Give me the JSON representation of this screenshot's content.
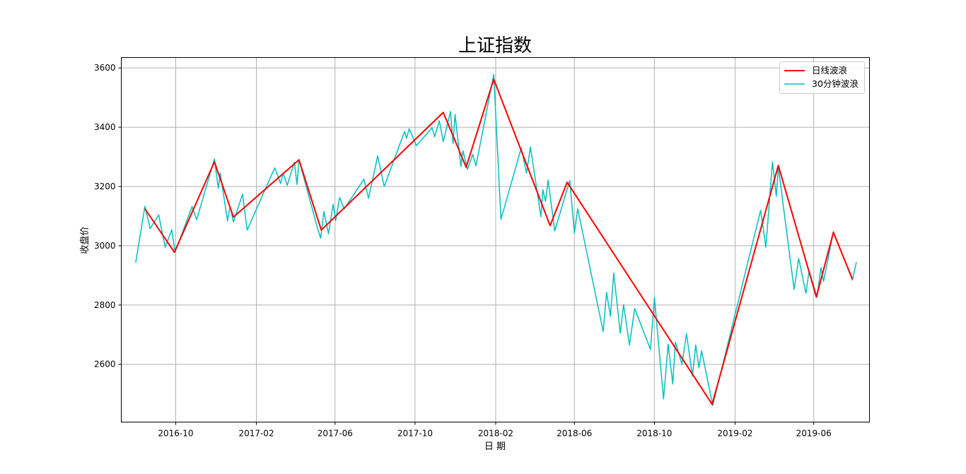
{
  "chart_data": {
    "type": "line",
    "title": "上证指数",
    "xlabel": "日 期",
    "ylabel": "收盘价",
    "xlim": [
      "2016-07-10",
      "2019-08-25"
    ],
    "ylim": [
      2405,
      3635
    ],
    "yticks": [
      2600,
      2800,
      3000,
      3200,
      3400,
      3600
    ],
    "xticks": [
      {
        "date": "2016-10-01",
        "label": "2016-10"
      },
      {
        "date": "2017-02-01",
        "label": "2017-02"
      },
      {
        "date": "2017-06-01",
        "label": "2017-06"
      },
      {
        "date": "2017-10-01",
        "label": "2017-10"
      },
      {
        "date": "2018-02-01",
        "label": "2018-02"
      },
      {
        "date": "2018-06-01",
        "label": "2018-06"
      },
      {
        "date": "2018-10-01",
        "label": "2018-10"
      },
      {
        "date": "2019-02-01",
        "label": "2019-02"
      },
      {
        "date": "2019-06-01",
        "label": "2019-06"
      }
    ],
    "grid": true,
    "legend": "top-right",
    "series": [
      {
        "name": "日线波浪",
        "color": "#ff0000",
        "points": [
          [
            "2016-08-15",
            3125
          ],
          [
            "2016-09-29",
            2978
          ],
          [
            "2016-11-29",
            3283
          ],
          [
            "2016-12-28",
            3097
          ],
          [
            "2017-04-07",
            3290
          ],
          [
            "2017-05-11",
            3053
          ],
          [
            "2017-11-13",
            3450
          ],
          [
            "2017-12-18",
            3265
          ],
          [
            "2018-01-29",
            3562
          ],
          [
            "2018-04-25",
            3068
          ],
          [
            "2018-05-21",
            3214
          ],
          [
            "2018-12-28",
            2465
          ],
          [
            "2019-04-08",
            3271
          ],
          [
            "2019-06-05",
            2827
          ],
          [
            "2019-07-01",
            3045
          ],
          [
            "2019-07-30",
            2887
          ]
        ]
      },
      {
        "name": "30分钟波浪",
        "color": "#00bfbf",
        "points": [
          [
            "2016-08-01",
            2943
          ],
          [
            "2016-08-15",
            3133
          ],
          [
            "2016-08-23",
            3058
          ],
          [
            "2016-09-05",
            3104
          ],
          [
            "2016-09-15",
            2995
          ],
          [
            "2016-09-25",
            3054
          ],
          [
            "2016-09-30",
            2978
          ],
          [
            "2016-10-26",
            3132
          ],
          [
            "2016-11-02",
            3088
          ],
          [
            "2016-11-29",
            3293
          ],
          [
            "2016-12-05",
            3194
          ],
          [
            "2016-12-08",
            3244
          ],
          [
            "2016-12-19",
            3085
          ],
          [
            "2016-12-23",
            3133
          ],
          [
            "2016-12-28",
            3080
          ],
          [
            "2017-01-11",
            3174
          ],
          [
            "2017-01-18",
            3053
          ],
          [
            "2017-03-01",
            3263
          ],
          [
            "2017-03-10",
            3210
          ],
          [
            "2017-03-14",
            3245
          ],
          [
            "2017-03-20",
            3204
          ],
          [
            "2017-03-31",
            3282
          ],
          [
            "2017-04-04",
            3207
          ],
          [
            "2017-04-07",
            3290
          ],
          [
            "2017-05-05",
            3062
          ],
          [
            "2017-05-10",
            3025
          ],
          [
            "2017-05-15",
            3115
          ],
          [
            "2017-05-22",
            3040
          ],
          [
            "2017-05-29",
            3140
          ],
          [
            "2017-06-02",
            3085
          ],
          [
            "2017-06-08",
            3163
          ],
          [
            "2017-06-15",
            3124
          ],
          [
            "2017-07-15",
            3225
          ],
          [
            "2017-07-22",
            3160
          ],
          [
            "2017-08-05",
            3303
          ],
          [
            "2017-08-15",
            3200
          ],
          [
            "2017-09-15",
            3386
          ],
          [
            "2017-09-18",
            3362
          ],
          [
            "2017-09-22",
            3395
          ],
          [
            "2017-10-03",
            3338
          ],
          [
            "2017-10-27",
            3398
          ],
          [
            "2017-10-31",
            3368
          ],
          [
            "2017-11-07",
            3422
          ],
          [
            "2017-11-13",
            3351
          ],
          [
            "2017-11-24",
            3453
          ],
          [
            "2017-11-28",
            3345
          ],
          [
            "2017-12-01",
            3443
          ],
          [
            "2017-12-10",
            3267
          ],
          [
            "2017-12-13",
            3321
          ],
          [
            "2017-12-20",
            3258
          ],
          [
            "2017-12-28",
            3308
          ],
          [
            "2018-01-02",
            3270
          ],
          [
            "2018-01-29",
            3578
          ],
          [
            "2018-02-09",
            3089
          ],
          [
            "2018-03-12",
            3330
          ],
          [
            "2018-03-20",
            3245
          ],
          [
            "2018-03-26",
            3333
          ],
          [
            "2018-04-11",
            3098
          ],
          [
            "2018-04-14",
            3189
          ],
          [
            "2018-04-18",
            3150
          ],
          [
            "2018-04-22",
            3221
          ],
          [
            "2018-05-02",
            3050
          ],
          [
            "2018-05-25",
            3220
          ],
          [
            "2018-06-01",
            3043
          ],
          [
            "2018-06-06",
            3125
          ],
          [
            "2018-07-15",
            2710
          ],
          [
            "2018-07-20",
            2843
          ],
          [
            "2018-07-26",
            2762
          ],
          [
            "2018-07-31",
            2908
          ],
          [
            "2018-08-10",
            2705
          ],
          [
            "2018-08-15",
            2801
          ],
          [
            "2018-08-24",
            2665
          ],
          [
            "2018-09-01",
            2788
          ],
          [
            "2018-09-25",
            2650
          ],
          [
            "2018-10-01",
            2825
          ],
          [
            "2018-10-15",
            2483
          ],
          [
            "2018-10-22",
            2668
          ],
          [
            "2018-10-29",
            2534
          ],
          [
            "2018-11-02",
            2675
          ],
          [
            "2018-11-12",
            2600
          ],
          [
            "2018-11-19",
            2703
          ],
          [
            "2018-11-28",
            2560
          ],
          [
            "2018-12-03",
            2665
          ],
          [
            "2018-12-08",
            2588
          ],
          [
            "2018-12-12",
            2645
          ],
          [
            "2018-12-29",
            2461
          ],
          [
            "2019-03-12",
            3120
          ],
          [
            "2019-03-20",
            2995
          ],
          [
            "2019-03-30",
            3283
          ],
          [
            "2019-04-05",
            3167
          ],
          [
            "2019-04-08",
            3265
          ],
          [
            "2019-05-02",
            2853
          ],
          [
            "2019-05-09",
            2957
          ],
          [
            "2019-05-20",
            2840
          ],
          [
            "2019-05-25",
            2915
          ],
          [
            "2019-06-06",
            2827
          ],
          [
            "2019-06-12",
            2926
          ],
          [
            "2019-06-16",
            2880
          ],
          [
            "2019-07-01",
            3048
          ],
          [
            "2019-07-30",
            2884
          ],
          [
            "2019-08-05",
            2945
          ]
        ]
      }
    ]
  }
}
